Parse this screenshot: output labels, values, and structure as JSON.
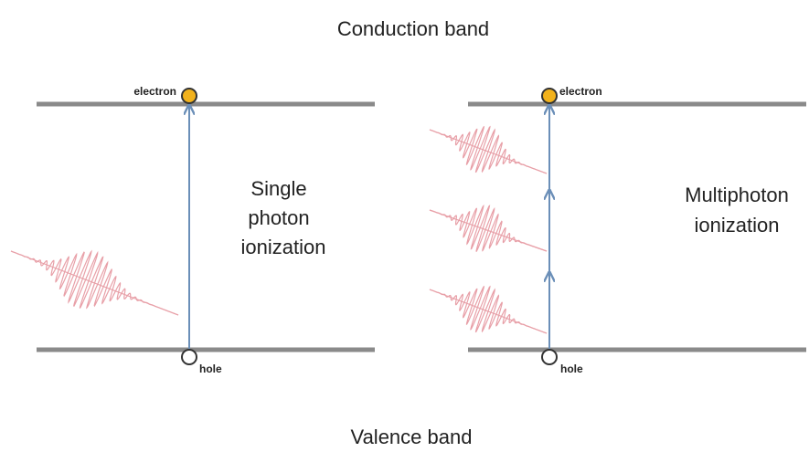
{
  "title_top": "Conduction band",
  "title_bottom": "Valence band",
  "panels": [
    {
      "electron_label": "electron",
      "hole_label": "hole",
      "caption": [
        "Single",
        "photon",
        "ionization"
      ]
    },
    {
      "electron_label": "electron",
      "hole_label": "hole",
      "caption": [
        "Multiphoton",
        "ionization"
      ]
    }
  ]
}
